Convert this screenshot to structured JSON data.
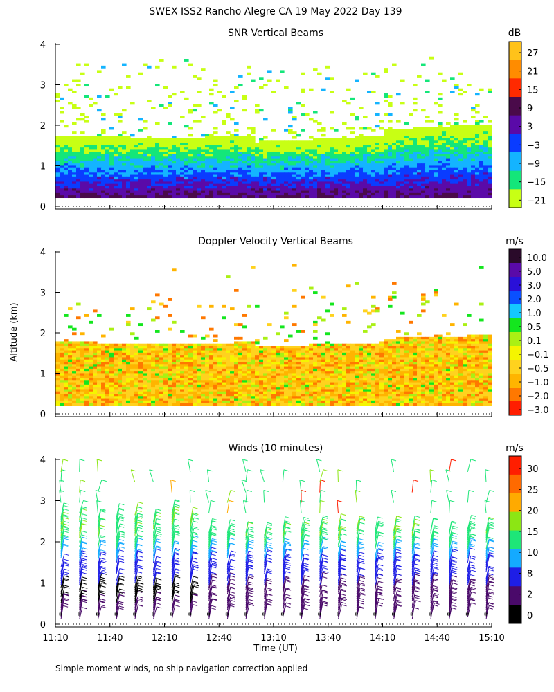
{
  "figure": {
    "title": "SWEX ISS2 Rancho Alegre CA  19 May 2022 Day 139",
    "footnote": "Simple moment winds, no ship navigation correction applied",
    "shared_ylabel": "Altitude (km)",
    "shared_xlabel": "Time (UT)"
  },
  "chart_data": [
    {
      "type": "heatmap",
      "title": "SNR Vertical Beams",
      "ylim": [
        0,
        4
      ],
      "yticks": [
        "0",
        "1",
        "2",
        "3",
        "4"
      ],
      "xlim_minutes": [
        670,
        910
      ],
      "colorbar": {
        "unit": "dB",
        "labels": [
          "27",
          "21",
          "15",
          "9",
          "3",
          "−3",
          "−9",
          "−15",
          "−21"
        ],
        "colors": [
          "#ffc21a",
          "#ff8c00",
          "#ff2a00",
          "#4a0a4a",
          "#5a0aa8",
          "#0a3cff",
          "#14b4ff",
          "#14e67a",
          "#c8ff14"
        ]
      }
    },
    {
      "type": "heatmap",
      "title": "Doppler Velocity Vertical Beams",
      "ylim": [
        0,
        4
      ],
      "yticks": [
        "0",
        "1",
        "2",
        "3",
        "4"
      ],
      "xlim_minutes": [
        670,
        910
      ],
      "colorbar": {
        "unit": "m/s",
        "labels": [
          "10.0",
          "5.0",
          "3.0",
          "2.0",
          "1.0",
          "0.5",
          "0.1",
          "−0.1",
          "−0.5",
          "−1.0",
          "−2.0",
          "−3.0"
        ],
        "colors": [
          "#2a0a2a",
          "#5a0aa8",
          "#2a10d8",
          "#0a50ff",
          "#14c8ff",
          "#14e61e",
          "#aaf014",
          "#f5f500",
          "#ffd21e",
          "#ffb400",
          "#ff7800",
          "#ff1e00"
        ]
      }
    },
    {
      "type": "scatter",
      "title": "Winds (10 minutes)",
      "ylim": [
        0,
        4
      ],
      "yticks": [
        "0",
        "1",
        "2",
        "3",
        "4"
      ],
      "xlim_minutes": [
        670,
        910
      ],
      "xticks": [
        "11:10",
        "11:40",
        "12:10",
        "12:40",
        "13:10",
        "13:40",
        "14:10",
        "14:40",
        "15:10"
      ],
      "colorbar": {
        "unit": "m/s",
        "labels": [
          "30",
          "25",
          "20",
          "15",
          "10",
          "8",
          "2",
          "0"
        ],
        "colors": [
          "#ff1e00",
          "#ff6a00",
          "#ffaa00",
          "#8ce614",
          "#1ee678",
          "#14aaff",
          "#1e1ee6",
          "#4a0a6a",
          "#000000"
        ]
      }
    }
  ]
}
